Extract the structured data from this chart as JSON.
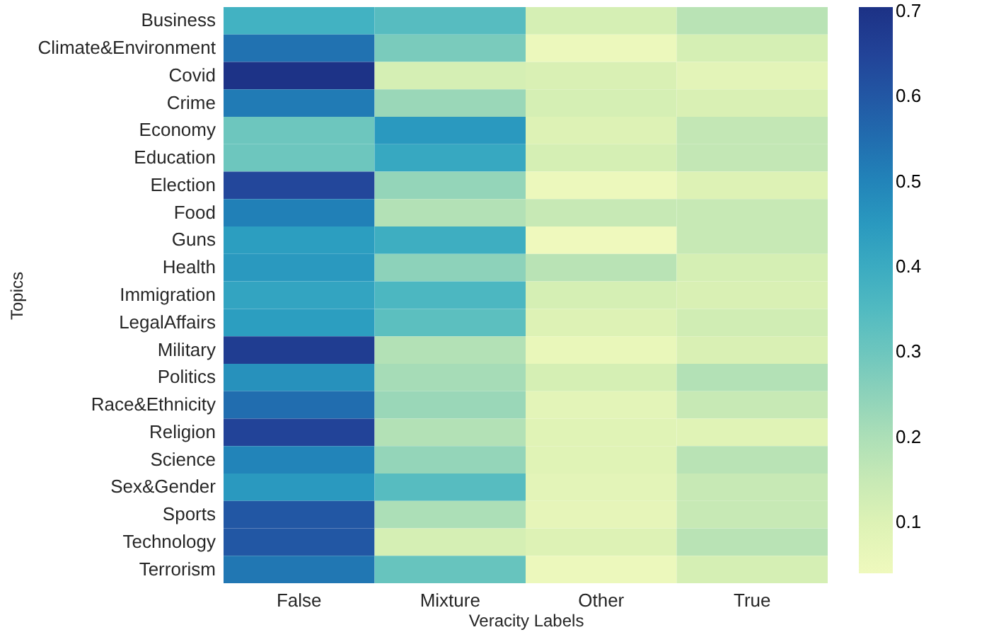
{
  "chart_data": {
    "type": "heatmap",
    "xlabel": "Veracity Labels",
    "ylabel": "Topics",
    "categories": [
      "False",
      "Mixture",
      "Other",
      "True"
    ],
    "y_categories": [
      "Business",
      "Climate&Environment",
      "Covid",
      "Crime",
      "Economy",
      "Education",
      "Election",
      "Food",
      "Guns",
      "Health",
      "Immigration",
      "LegalAffairs",
      "Military",
      "Politics",
      "Race&Ethnicity",
      "Religion",
      "Science",
      "Sex&Gender",
      "Sports",
      "Technology",
      "Terrorism"
    ],
    "cells": [
      [
        0.38,
        0.34,
        0.12,
        0.18
      ],
      [
        0.54,
        0.28,
        0.05,
        0.12
      ],
      [
        0.7,
        0.12,
        0.11,
        0.08
      ],
      [
        0.52,
        0.23,
        0.12,
        0.11
      ],
      [
        0.3,
        0.45,
        0.1,
        0.16
      ],
      [
        0.3,
        0.41,
        0.12,
        0.16
      ],
      [
        0.64,
        0.24,
        0.05,
        0.1
      ],
      [
        0.51,
        0.19,
        0.15,
        0.15
      ],
      [
        0.44,
        0.39,
        0.04,
        0.15
      ],
      [
        0.45,
        0.25,
        0.18,
        0.12
      ],
      [
        0.42,
        0.36,
        0.12,
        0.11
      ],
      [
        0.44,
        0.33,
        0.1,
        0.13
      ],
      [
        0.67,
        0.19,
        0.06,
        0.11
      ],
      [
        0.47,
        0.21,
        0.12,
        0.19
      ],
      [
        0.55,
        0.23,
        0.08,
        0.15
      ],
      [
        0.65,
        0.19,
        0.09,
        0.09
      ],
      [
        0.5,
        0.24,
        0.09,
        0.18
      ],
      [
        0.45,
        0.34,
        0.08,
        0.15
      ],
      [
        0.6,
        0.2,
        0.07,
        0.15
      ],
      [
        0.6,
        0.12,
        0.1,
        0.18
      ],
      [
        0.53,
        0.31,
        0.05,
        0.12
      ]
    ],
    "clim": [
      0.04,
      0.705
    ],
    "cticks": [
      0.1,
      0.2,
      0.3,
      0.4,
      0.5,
      0.6,
      0.7
    ]
  }
}
